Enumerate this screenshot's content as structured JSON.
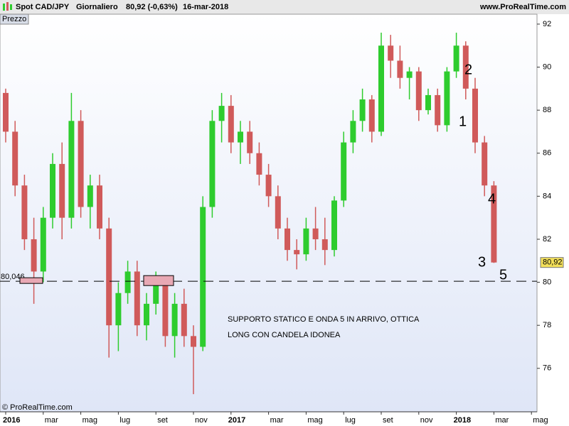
{
  "chart_data": {
    "type": "candlestick",
    "title": "Spot CAD/JPY",
    "period": "Giornaliero",
    "last_quote": "80,92 (-0,63%)",
    "date": "16-mar-2018",
    "site": "www.ProRealTime.com",
    "panel_label": "Prezzo",
    "copyright": "© ProRealTime.com",
    "categories": [
      "2016",
      null,
      null,
      null,
      "mar",
      null,
      null,
      null,
      "mag",
      null,
      null,
      null,
      "lug",
      null,
      null,
      null,
      "set",
      null,
      null,
      null,
      "nov",
      null,
      null,
      null,
      "2017",
      null,
      null,
      null,
      "mar",
      null,
      null,
      null,
      "mag",
      null,
      null,
      null,
      "lug",
      null,
      null,
      null,
      "set",
      null,
      null,
      null,
      "nov",
      null,
      null,
      null,
      "2018",
      null,
      null,
      null,
      "mar",
      null,
      null,
      null,
      "mag",
      null
    ],
    "open": [
      88.8,
      87,
      84.5,
      82,
      80.5,
      83,
      85.5,
      83,
      87.5,
      83.5,
      84.5,
      82.5,
      78,
      79.5,
      80.5,
      78,
      79,
      80,
      77.5,
      79,
      77.5,
      77,
      83.5,
      87.5,
      88.2,
      86.5,
      87,
      86,
      85,
      84,
      82.5,
      81.5,
      81.3,
      82.5,
      82,
      81.5,
      83.8,
      86.5,
      87.5,
      88.5,
      87,
      91,
      90.3,
      89.5,
      89.8,
      88,
      88.7,
      87.3,
      89.8,
      91,
      89,
      86.5,
      84.5,
      null,
      null,
      null,
      null,
      null
    ],
    "high": [
      89,
      87.5,
      85,
      83,
      83.5,
      86,
      86.5,
      88.8,
      88,
      85,
      85,
      83,
      80,
      81,
      81,
      79.5,
      80.5,
      80.3,
      79.5,
      79.7,
      78,
      84,
      88,
      88.8,
      88.7,
      87.5,
      87.5,
      86.5,
      85.5,
      84.5,
      83,
      82,
      83,
      83.5,
      83,
      84,
      87,
      88,
      89,
      88.7,
      91.6,
      91.5,
      91,
      90,
      90,
      89,
      89,
      90,
      91.6,
      91.2,
      89.5,
      86.8,
      84.7,
      null,
      null,
      null,
      null,
      null
    ],
    "low": [
      86.5,
      84,
      81.5,
      79,
      80,
      82.5,
      82,
      82.5,
      83,
      82.5,
      82,
      76.5,
      76.8,
      79,
      77.5,
      77.3,
      78.5,
      77,
      76.5,
      77,
      74.8,
      76.8,
      83,
      86.5,
      86,
      85.5,
      85.5,
      84.5,
      83.5,
      82,
      81,
      80.6,
      81,
      81.5,
      80.8,
      81.2,
      83.5,
      86,
      87,
      86.5,
      86.8,
      89.5,
      89,
      88.5,
      87.5,
      87.8,
      87,
      87,
      89.5,
      88.5,
      86,
      84,
      80.9,
      null,
      null,
      null,
      null,
      null
    ],
    "close": [
      87,
      84.5,
      82,
      80.5,
      83,
      85.5,
      83,
      87.5,
      83.5,
      84.5,
      82.5,
      78,
      79.5,
      80.5,
      78,
      79,
      80,
      77.5,
      79,
      77.5,
      77,
      83.5,
      87.5,
      88.2,
      86.5,
      87,
      86,
      85,
      84,
      82.5,
      81.5,
      81.3,
      82.5,
      82,
      81.5,
      83.8,
      86.5,
      87.5,
      88.5,
      87,
      91,
      90.3,
      89.5,
      89.8,
      88,
      88.7,
      87.3,
      89.8,
      91,
      89,
      86.5,
      84.5,
      80.92,
      null,
      null,
      null,
      null,
      null
    ],
    "up_color": "#2ecc2e",
    "down_color": "#d05a5a",
    "ylim": [
      73.98,
      92.46
    ],
    "yticks": [
      76,
      78,
      80,
      82,
      84,
      86,
      88,
      90,
      92
    ],
    "support": {
      "value": 80.046,
      "label": "80,046"
    },
    "last_price": {
      "value": 80.92,
      "label": "80,92"
    },
    "waves": [
      "1",
      "2",
      "3",
      "4",
      "5"
    ],
    "annotation": "SUPPORTO STATICO E ONDA 5 IN ARRIVO, OTTICA LONG CON CANDELA IDONEA"
  }
}
